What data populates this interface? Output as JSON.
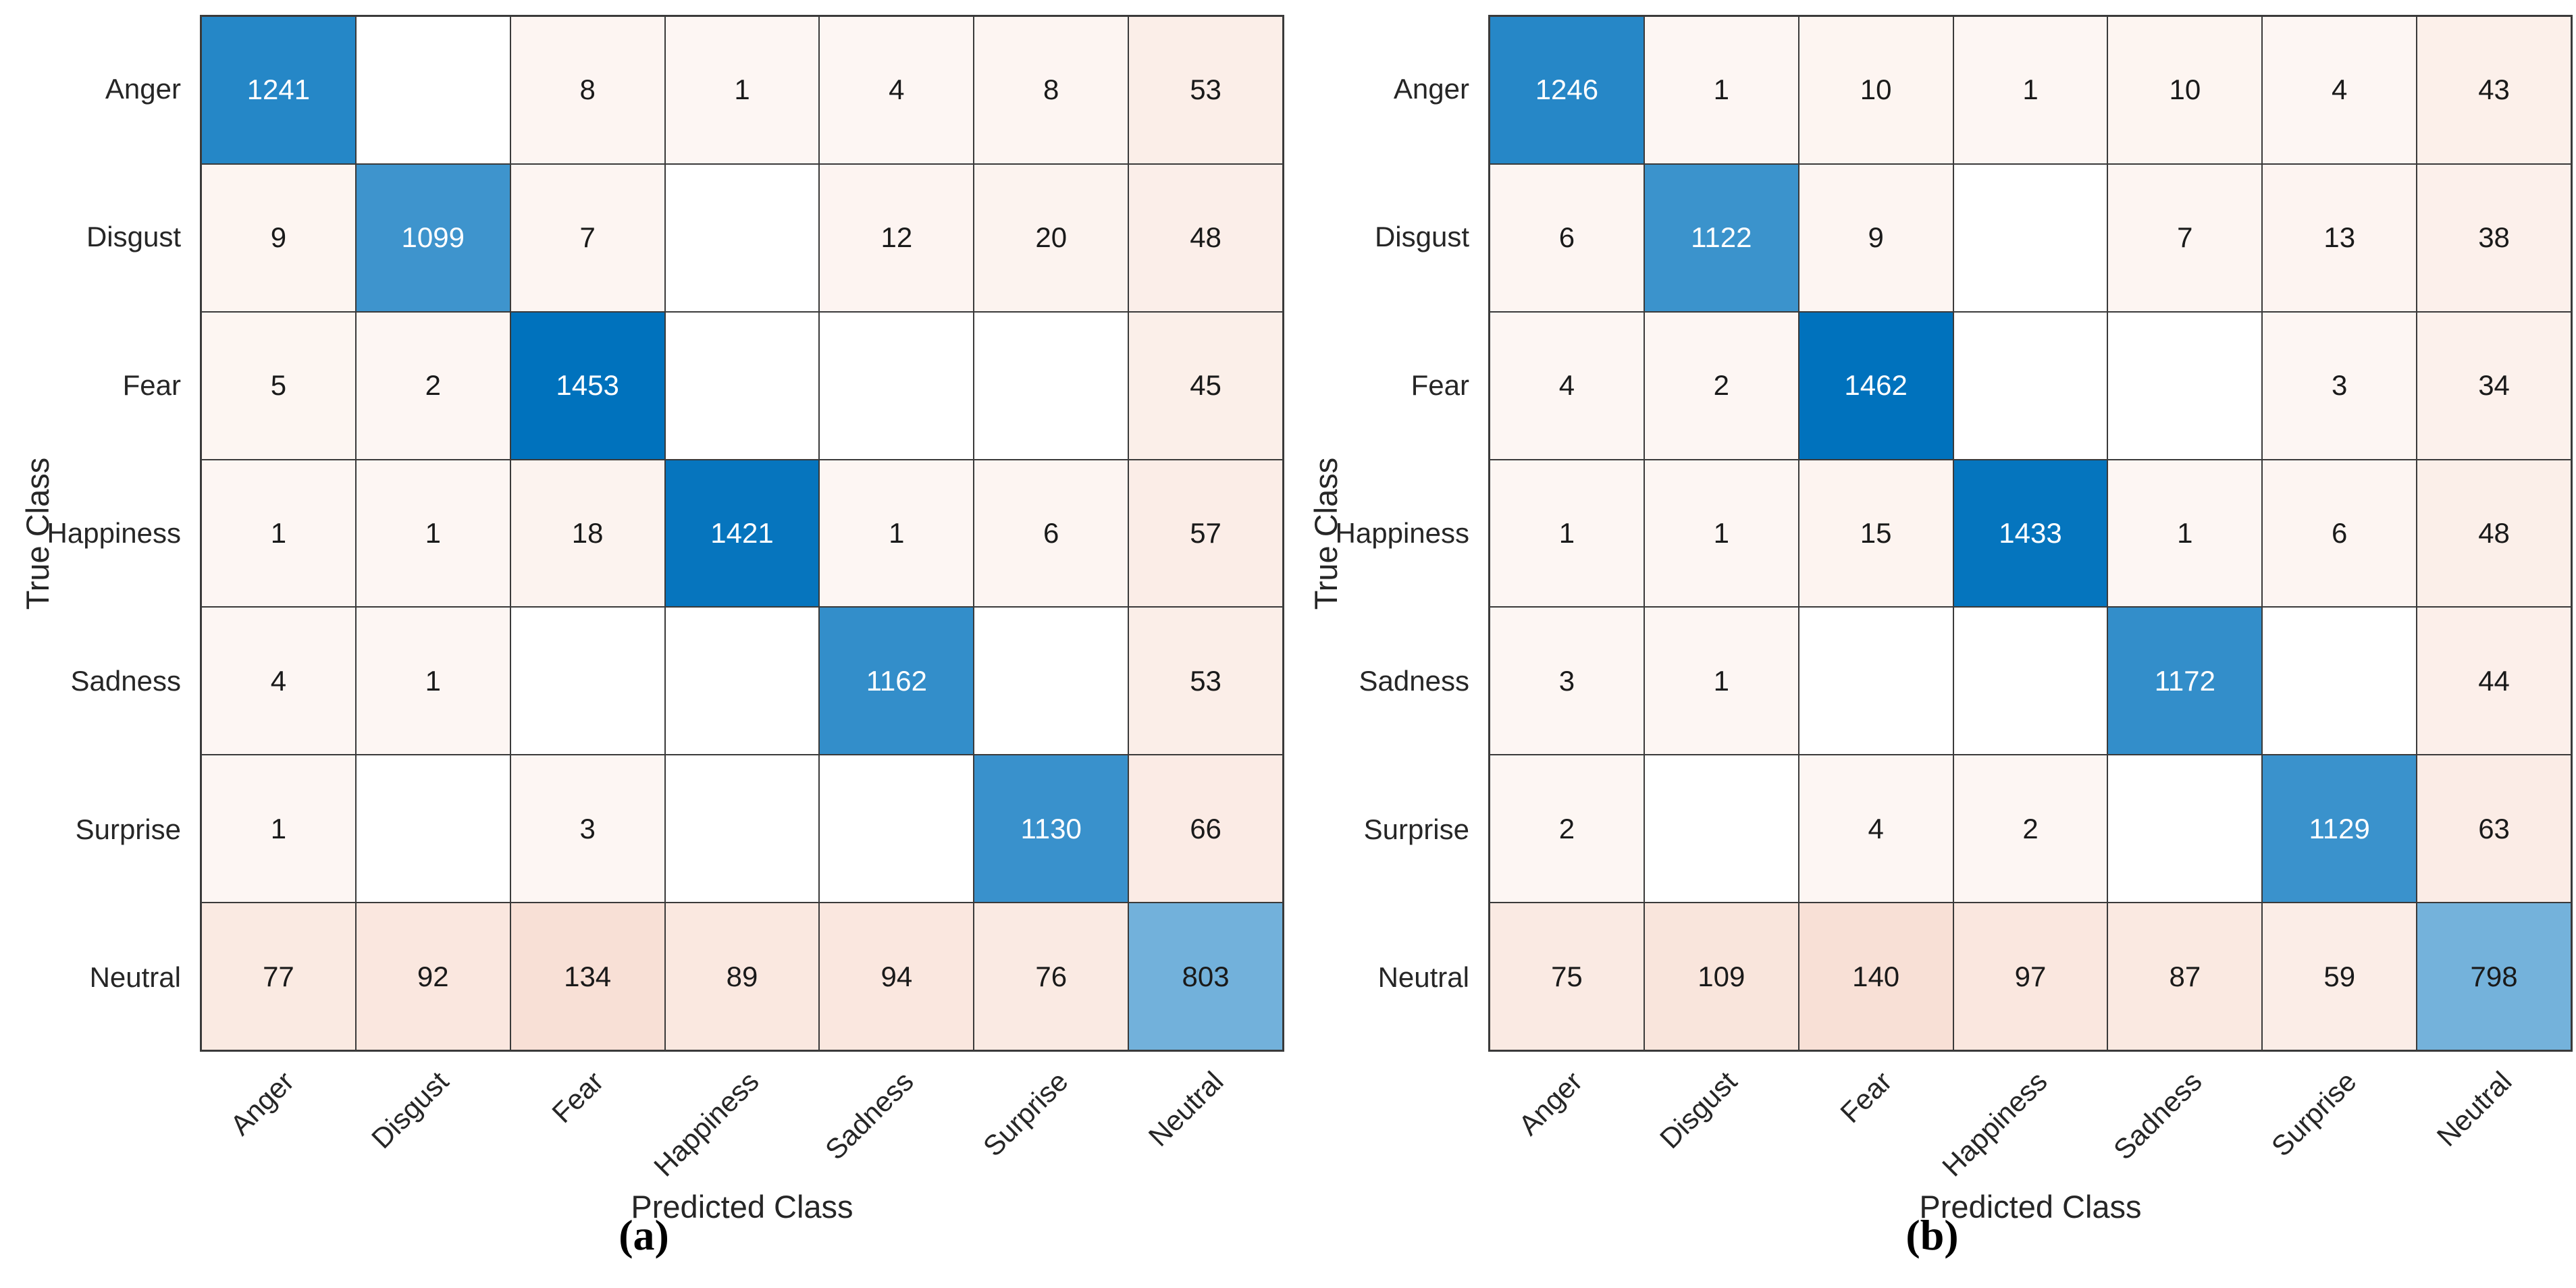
{
  "chart_data": [
    {
      "type": "heatmap",
      "subtype": "confusion-matrix",
      "caption": "(a)",
      "xlabel": "Predicted Class",
      "ylabel": "True Class",
      "categories": [
        "Anger",
        "Disgust",
        "Fear",
        "Happiness",
        "Sadness",
        "Surprise",
        "Neutral"
      ],
      "matrix": [
        [
          1241,
          0,
          8,
          1,
          4,
          8,
          53
        ],
        [
          9,
          1099,
          7,
          0,
          12,
          20,
          48
        ],
        [
          5,
          2,
          1453,
          0,
          0,
          0,
          45
        ],
        [
          1,
          1,
          18,
          1421,
          1,
          6,
          57
        ],
        [
          4,
          1,
          0,
          0,
          1162,
          0,
          53
        ],
        [
          1,
          0,
          3,
          0,
          0,
          1130,
          66
        ],
        [
          77,
          92,
          134,
          89,
          94,
          76,
          803
        ]
      ],
      "colors": {
        "diagonal_base": "#0072bd",
        "offdiagonal_base": "#d95319",
        "zero_cell": "#ffffff",
        "grid_line": "#3a3a3a",
        "label_text": "#262626"
      },
      "legend": "none",
      "grid": "on"
    },
    {
      "type": "heatmap",
      "subtype": "confusion-matrix",
      "caption": "(b)",
      "xlabel": "Predicted Class",
      "ylabel": "True Class",
      "categories": [
        "Anger",
        "Disgust",
        "Fear",
        "Happiness",
        "Sadness",
        "Surprise",
        "Neutral"
      ],
      "matrix": [
        [
          1246,
          1,
          10,
          1,
          10,
          4,
          43
        ],
        [
          6,
          1122,
          9,
          0,
          7,
          13,
          38
        ],
        [
          4,
          2,
          1462,
          0,
          0,
          3,
          34
        ],
        [
          1,
          1,
          15,
          1433,
          1,
          6,
          48
        ],
        [
          3,
          1,
          0,
          0,
          1172,
          0,
          44
        ],
        [
          2,
          0,
          4,
          2,
          0,
          1129,
          63
        ],
        [
          75,
          109,
          140,
          97,
          87,
          59,
          798
        ]
      ],
      "colors": {
        "diagonal_base": "#0072bd",
        "offdiagonal_base": "#d95319",
        "zero_cell": "#ffffff",
        "grid_line": "#3a3a3a",
        "label_text": "#262626"
      },
      "legend": "none",
      "grid": "on"
    }
  ]
}
